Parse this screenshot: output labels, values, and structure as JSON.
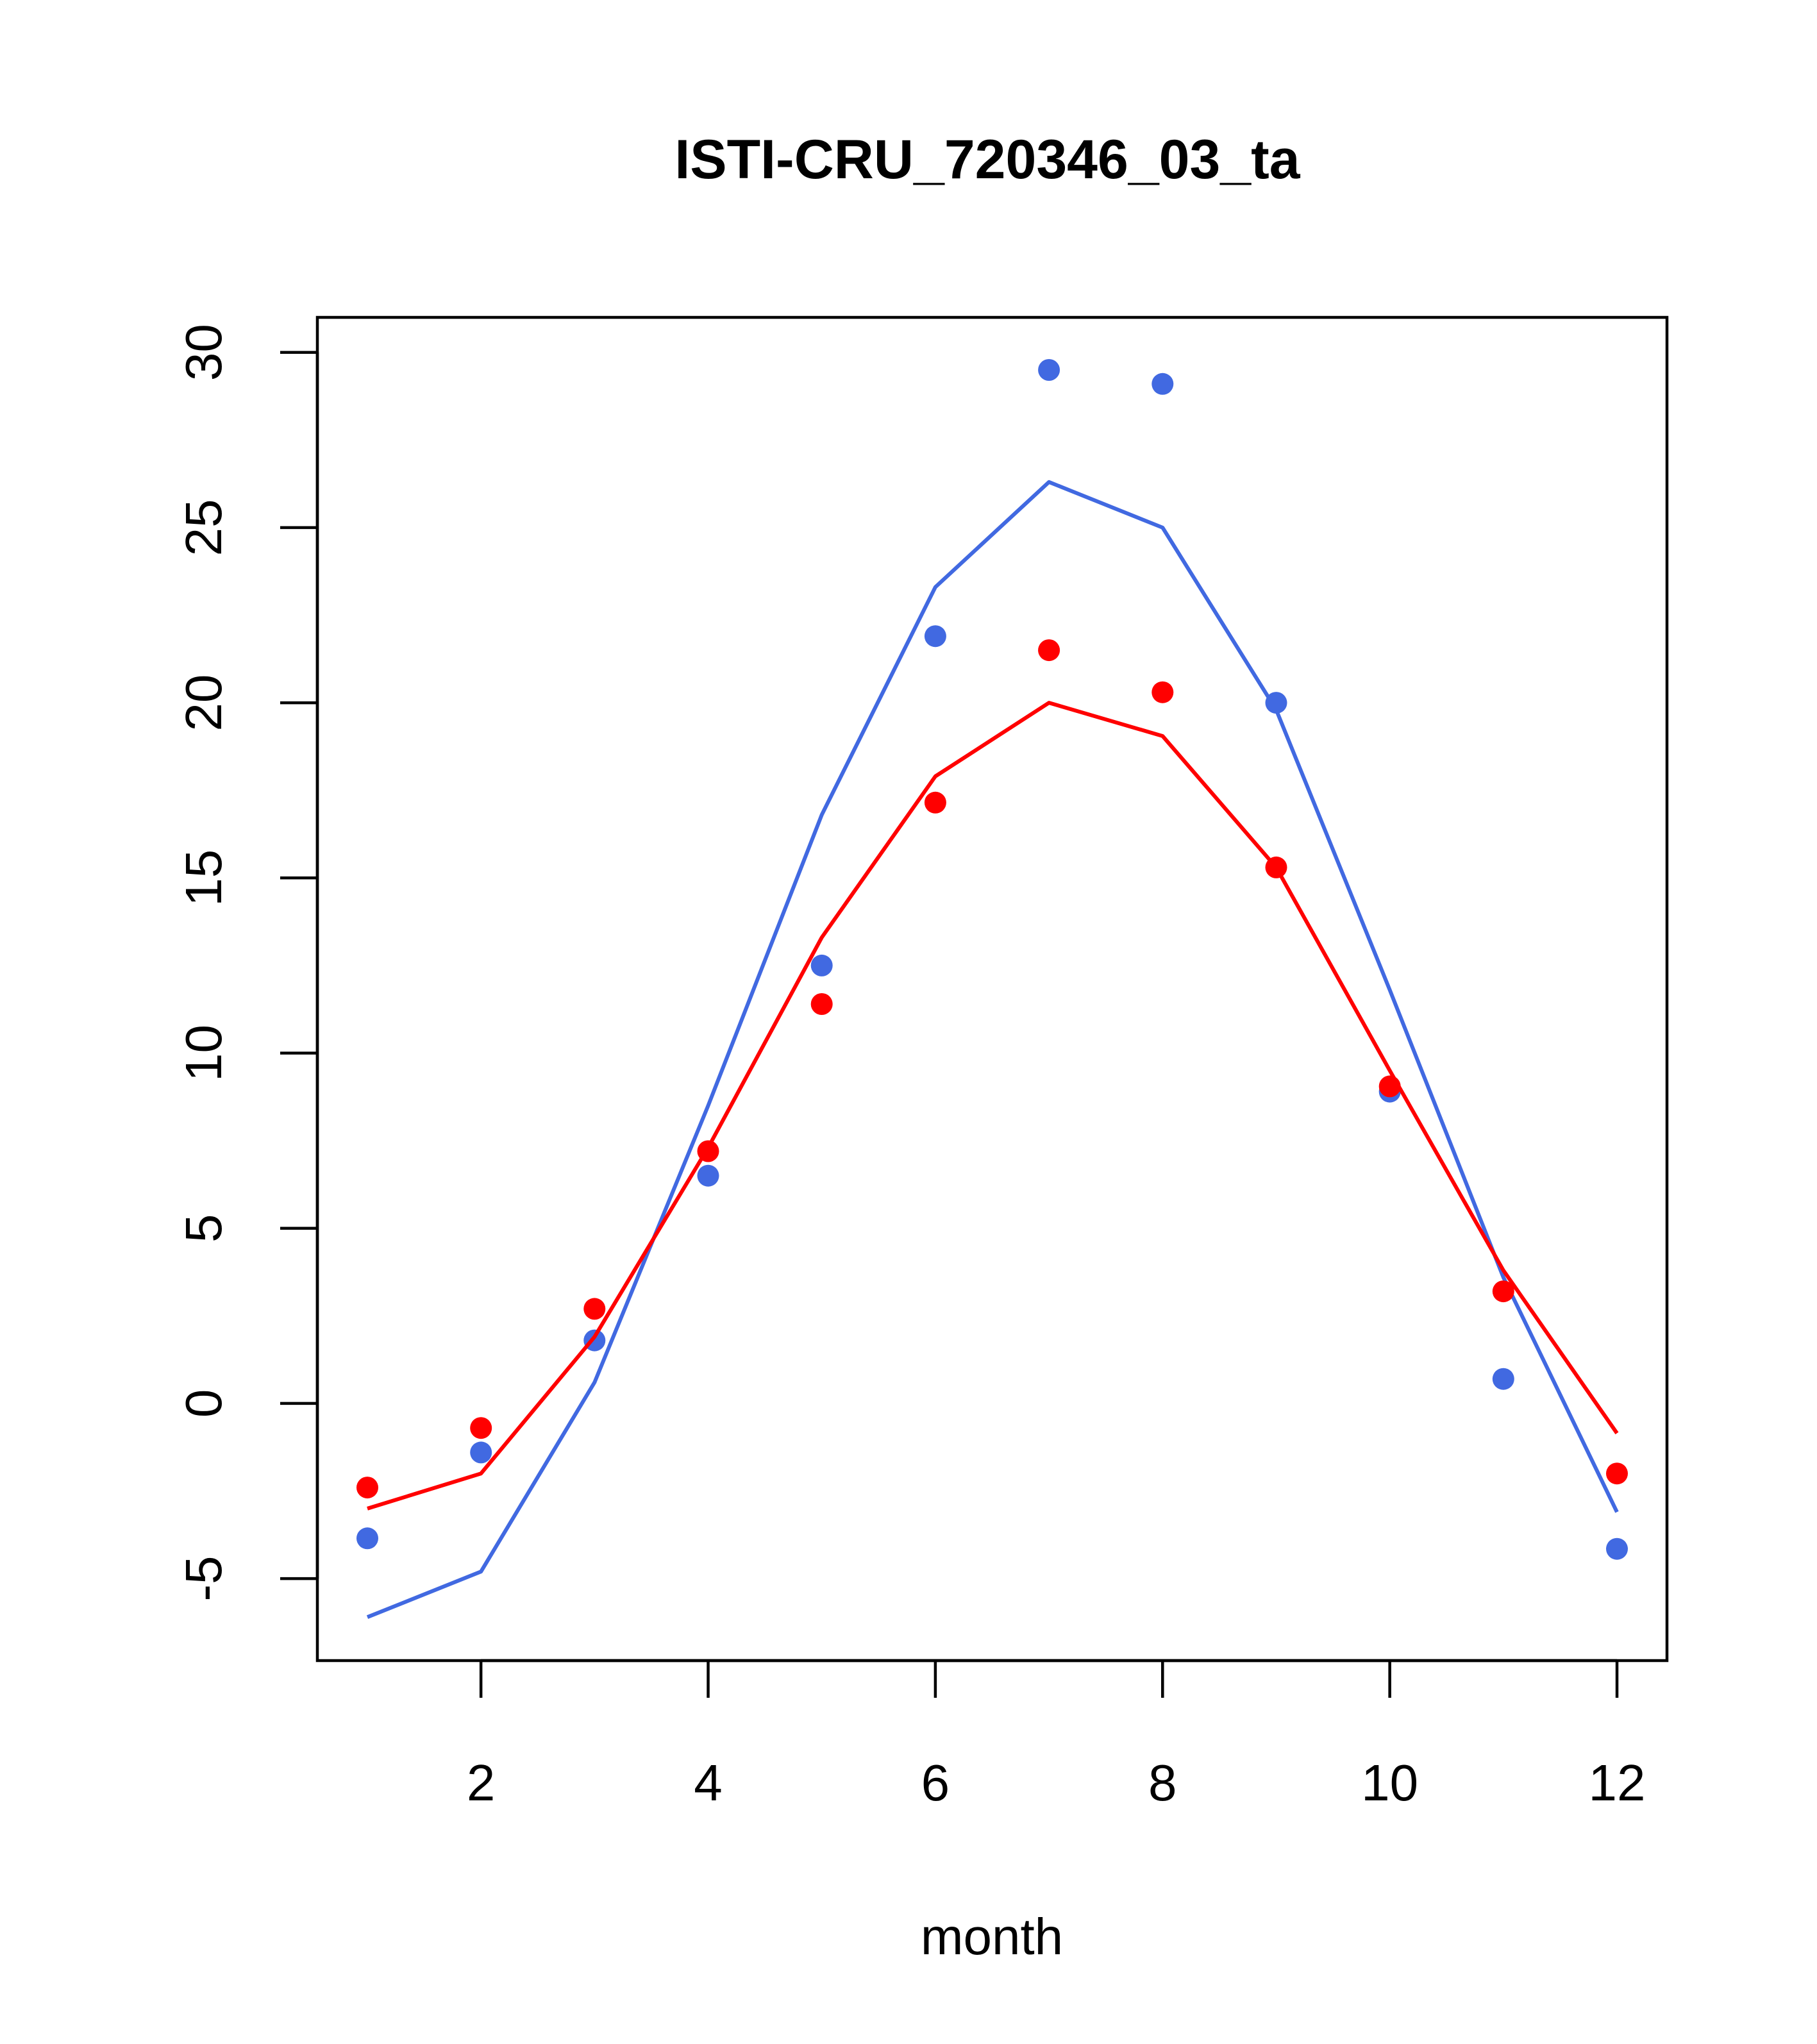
{
  "chart_data": {
    "type": "line",
    "title": "ISTI-CRU_720346_03_ta",
    "xlabel": "month",
    "ylabel": "",
    "xlim": [
      0.56,
      12.44
    ],
    "ylim": [
      -7.34,
      31.0
    ],
    "x_ticks": [
      2,
      4,
      6,
      8,
      10,
      12
    ],
    "x_tick_labels": [
      "2",
      "4",
      "6",
      "8",
      "10",
      "12"
    ],
    "y_ticks": [
      -5,
      0,
      5,
      10,
      15,
      20,
      25,
      30
    ],
    "y_tick_labels": [
      "-5",
      "0",
      "5",
      "10",
      "15",
      "20",
      "25",
      "30"
    ],
    "grid": false,
    "legend": "none",
    "x": [
      1,
      2,
      3,
      4,
      5,
      6,
      7,
      8,
      9,
      10,
      11,
      12
    ],
    "series": [
      {
        "color": "#4169E1",
        "kind": "line",
        "values": [
          -6.1,
          -4.8,
          0.6,
          8.5,
          16.8,
          23.3,
          26.3,
          25.0,
          19.8,
          11.8,
          3.6,
          -3.1
        ]
      },
      {
        "color": "#4169E1",
        "kind": "points",
        "values": [
          -3.85,
          -1.4,
          1.8,
          6.5,
          12.5,
          21.9,
          29.5,
          29.1,
          20.0,
          8.9,
          0.7,
          -4.15
        ]
      },
      {
        "color": "#FF0000",
        "kind": "line",
        "values": [
          -3.0,
          -2.0,
          1.9,
          7.3,
          13.3,
          17.9,
          20.0,
          19.05,
          15.3,
          9.5,
          3.8,
          -0.85
        ]
      },
      {
        "color": "#FF0000",
        "kind": "points",
        "values": [
          -2.4,
          -0.7,
          2.7,
          7.2,
          11.4,
          17.15,
          21.5,
          20.3,
          15.3,
          9.05,
          3.2,
          -2.0
        ]
      }
    ]
  }
}
